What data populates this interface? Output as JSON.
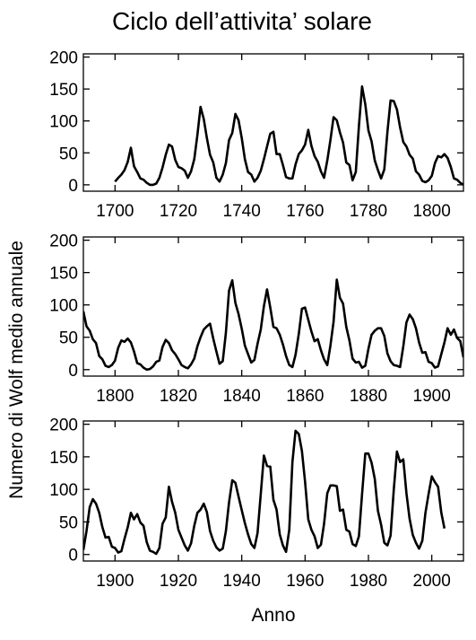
{
  "colors": {
    "background": "#ffffff",
    "line": "#000000",
    "axis": "#000000"
  },
  "chart_data": {
    "type": "line",
    "title": "Ciclo dell’attivita’ solare",
    "xlabel": "Anno",
    "ylabel": "Numero di Wolf medio annuale",
    "grid": false,
    "legend": "none",
    "panels": [
      {
        "xlim": [
          1690,
          1810
        ],
        "ylim": [
          -10,
          205
        ],
        "xticks": [
          1700,
          1720,
          1740,
          1760,
          1780,
          1800
        ],
        "yticks": [
          0,
          50,
          100,
          150,
          200
        ],
        "series": [
          {
            "x": [
              1700,
              1701,
              1702,
              1703,
              1704,
              1705,
              1706,
              1707,
              1708,
              1709,
              1710,
              1711,
              1712,
              1713,
              1714,
              1715,
              1716,
              1717,
              1718,
              1719,
              1720,
              1721,
              1722,
              1723,
              1724,
              1725,
              1726,
              1727,
              1728,
              1729,
              1730,
              1731,
              1732,
              1733,
              1734,
              1735,
              1736,
              1737,
              1738,
              1739,
              1740,
              1741,
              1742,
              1743,
              1744,
              1745,
              1746,
              1747,
              1748,
              1749,
              1750,
              1751,
              1752,
              1753,
              1754,
              1755,
              1756,
              1757,
              1758,
              1759,
              1760,
              1761,
              1762,
              1763,
              1764,
              1765,
              1766,
              1767,
              1768,
              1769,
              1770,
              1771,
              1772,
              1773,
              1774,
              1775,
              1776,
              1777,
              1778,
              1779,
              1780,
              1781,
              1782,
              1783,
              1784,
              1785,
              1786,
              1787,
              1788,
              1789,
              1790,
              1791,
              1792,
              1793,
              1794,
              1795,
              1796,
              1797,
              1798,
              1799,
              1800,
              1801,
              1802,
              1803,
              1804,
              1805,
              1806,
              1807,
              1808,
              1809,
              1810
            ],
            "y": [
              5,
              11,
              16,
              23,
              36,
              58,
              29,
              20,
              10,
              8,
              3,
              0,
              0,
              2,
              11,
              27,
              47,
              63,
              60,
              39,
              28,
              26,
              22,
              11,
              21,
              40,
              78,
              122,
              103,
              73,
              47,
              35,
              11,
              5,
              16,
              34,
              70,
              81,
              111,
              101,
              73,
              40,
              20,
              16,
              5,
              11,
              22,
              40,
              60,
              80,
              83,
              48,
              48,
              31,
              12,
              10,
              10,
              32,
              48,
              54,
              63,
              86,
              61,
              45,
              36,
              21,
              11,
              38,
              70,
              106,
              101,
              82,
              66,
              35,
              31,
              7,
              20,
              92,
              154,
              126,
              85,
              68,
              38,
              23,
              10,
              24,
              83,
              132,
              131,
              118,
              90,
              67,
              60,
              47,
              41,
              21,
              16,
              6,
              4,
              7,
              14,
              34,
              45,
              43,
              48,
              42,
              28,
              10,
              8,
              3,
              0
            ]
          }
        ]
      },
      {
        "xlim": [
          1790,
          1910
        ],
        "ylim": [
          -10,
          205
        ],
        "xticks": [
          1800,
          1820,
          1840,
          1860,
          1880,
          1900
        ],
        "yticks": [
          0,
          50,
          100,
          150,
          200
        ],
        "series": [
          {
            "x": [
              1790,
              1791,
              1792,
              1793,
              1794,
              1795,
              1796,
              1797,
              1798,
              1799,
              1800,
              1801,
              1802,
              1803,
              1804,
              1805,
              1806,
              1807,
              1808,
              1809,
              1810,
              1811,
              1812,
              1813,
              1814,
              1815,
              1816,
              1817,
              1818,
              1819,
              1820,
              1821,
              1822,
              1823,
              1824,
              1825,
              1826,
              1827,
              1828,
              1829,
              1830,
              1831,
              1832,
              1833,
              1834,
              1835,
              1836,
              1837,
              1838,
              1839,
              1840,
              1841,
              1842,
              1843,
              1844,
              1845,
              1846,
              1847,
              1848,
              1849,
              1850,
              1851,
              1852,
              1853,
              1854,
              1855,
              1856,
              1857,
              1858,
              1859,
              1860,
              1861,
              1862,
              1863,
              1864,
              1865,
              1866,
              1867,
              1868,
              1869,
              1870,
              1871,
              1872,
              1873,
              1874,
              1875,
              1876,
              1877,
              1878,
              1879,
              1880,
              1881,
              1882,
              1883,
              1884,
              1885,
              1886,
              1887,
              1888,
              1889,
              1890,
              1891,
              1892,
              1893,
              1894,
              1895,
              1896,
              1897,
              1898,
              1899,
              1900,
              1901,
              1902,
              1903,
              1904,
              1905,
              1906,
              1907,
              1908,
              1909,
              1910
            ],
            "y": [
              90,
              67,
              60,
              47,
              41,
              21,
              16,
              6,
              4,
              7,
              14,
              34,
              45,
              43,
              48,
              42,
              28,
              10,
              8,
              3,
              0,
              1,
              5,
              12,
              14,
              35,
              46,
              41,
              30,
              24,
              16,
              7,
              4,
              2,
              8,
              17,
              36,
              50,
              62,
              67,
              71,
              48,
              28,
              9,
              13,
              57,
              122,
              138,
              103,
              86,
              63,
              37,
              24,
              11,
              15,
              40,
              62,
              98,
              124,
              96,
              66,
              64,
              54,
              39,
              21,
              7,
              4,
              23,
              55,
              94,
              96,
              77,
              59,
              44,
              47,
              30,
              16,
              7,
              37,
              74,
              139,
              111,
              102,
              66,
              45,
              17,
              11,
              12,
              3,
              6,
              32,
              54,
              60,
              64,
              64,
              52,
              25,
              13,
              7,
              6,
              4,
              36,
              73,
              85,
              78,
              64,
              42,
              26,
              27,
              12,
              10,
              3,
              5,
              24,
              42,
              64,
              54,
              62,
              49,
              44,
              19
            ]
          }
        ]
      },
      {
        "xlim": [
          1890,
          2010
        ],
        "ylim": [
          -10,
          205
        ],
        "xticks": [
          1900,
          1920,
          1940,
          1960,
          1980,
          2000
        ],
        "yticks": [
          0,
          50,
          100,
          150,
          200
        ],
        "series": [
          {
            "x": [
              1890,
              1891,
              1892,
              1893,
              1894,
              1895,
              1896,
              1897,
              1898,
              1899,
              1900,
              1901,
              1902,
              1903,
              1904,
              1905,
              1906,
              1907,
              1908,
              1909,
              1910,
              1911,
              1912,
              1913,
              1914,
              1915,
              1916,
              1917,
              1918,
              1919,
              1920,
              1921,
              1922,
              1923,
              1924,
              1925,
              1926,
              1927,
              1928,
              1929,
              1930,
              1931,
              1932,
              1933,
              1934,
              1935,
              1936,
              1937,
              1938,
              1939,
              1940,
              1941,
              1942,
              1943,
              1944,
              1945,
              1946,
              1947,
              1948,
              1949,
              1950,
              1951,
              1952,
              1953,
              1954,
              1955,
              1956,
              1957,
              1958,
              1959,
              1960,
              1961,
              1962,
              1963,
              1964,
              1965,
              1966,
              1967,
              1968,
              1969,
              1970,
              1971,
              1972,
              1973,
              1974,
              1975,
              1976,
              1977,
              1978,
              1979,
              1980,
              1981,
              1982,
              1983,
              1984,
              1985,
              1986,
              1987,
              1988,
              1989,
              1990,
              1991,
              1992,
              1993,
              1994,
              1995,
              1996,
              1997,
              1998,
              1999,
              2000,
              2001,
              2002,
              2003,
              2004
            ],
            "y": [
              7,
              36,
              73,
              85,
              78,
              64,
              42,
              26,
              27,
              12,
              10,
              3,
              5,
              24,
              42,
              64,
              54,
              62,
              49,
              44,
              19,
              6,
              4,
              1,
              10,
              47,
              57,
              104,
              81,
              64,
              38,
              26,
              14,
              6,
              17,
              44,
              64,
              69,
              78,
              65,
              36,
              21,
              11,
              6,
              9,
              36,
              80,
              114,
              110,
              89,
              68,
              48,
              31,
              16,
              10,
              33,
              93,
              152,
              136,
              135,
              84,
              69,
              31,
              14,
              4,
              38,
              142,
              190,
              185,
              159,
              112,
              54,
              38,
              28,
              10,
              15,
              47,
              94,
              106,
              106,
              105,
              67,
              69,
              38,
              35,
              16,
              13,
              28,
              93,
              155,
              155,
              141,
              116,
              67,
              46,
              18,
              14,
              29,
              100,
              158,
              142,
              146,
              94,
              55,
              30,
              18,
              9,
              21,
              64,
              93,
              120,
              111,
              104,
              64,
              40
            ]
          }
        ]
      }
    ]
  }
}
